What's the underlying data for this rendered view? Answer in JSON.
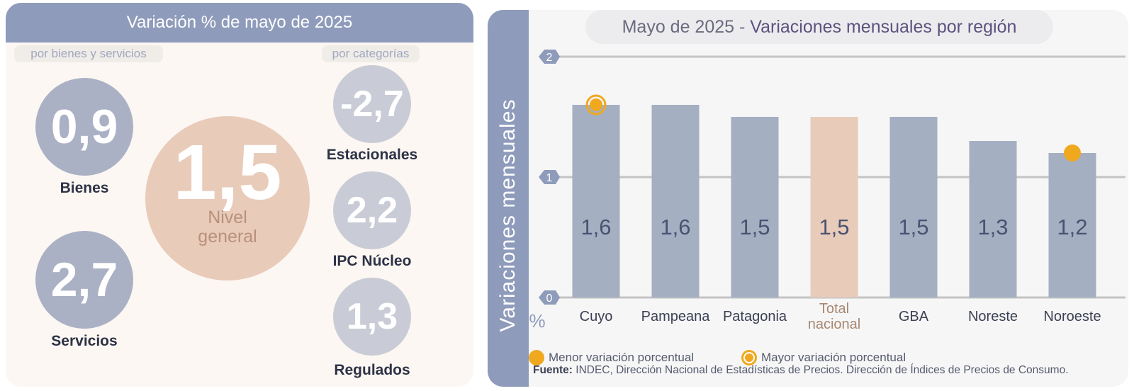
{
  "left": {
    "title": "Variación % de mayo de 2025",
    "pill_left": "por bienes y servicios",
    "pill_right": "por categorías",
    "bienes": {
      "value": "0,9",
      "label": "Bienes"
    },
    "servicios": {
      "value": "2,7",
      "label": "Servicios"
    },
    "nivel_general": {
      "value": "1,5",
      "label_line1": "Nivel",
      "label_line2": "general"
    },
    "estacionales": {
      "value": "-2,7",
      "label": "Estacionales"
    },
    "ipc_nucleo": {
      "value": "2,2",
      "label": "IPC Núcleo"
    },
    "regulados": {
      "value": "1,3",
      "label": "Regulados"
    }
  },
  "right": {
    "title_part1": "Mayo de 2025",
    "title_sep": " - ",
    "title_part2": "Variaciones mensuales por región",
    "y_axis_title": "Variaciones  mensuales",
    "unit": "%",
    "legend_min": "Menor variación porcentual",
    "legend_max": "Mayor variación porcentual",
    "source_label": "Fuente:",
    "source_text": " INDEC, Dirección Nacional de Estadísticas de Precios. Dirección de Índices de Precios de Consumo."
  },
  "chart_data": {
    "type": "bar",
    "title": "Mayo de 2025 - Variaciones mensuales por región",
    "ylabel": "Variaciones  mensuales",
    "yunit": "%",
    "ylim": [
      0,
      2
    ],
    "yticks": [
      "0",
      "1",
      "2"
    ],
    "grid": true,
    "categories": [
      "Cuyo",
      "Pampeana",
      "Patagonia",
      "Total nacional",
      "GBA",
      "Noreste",
      "Noroeste"
    ],
    "values": [
      1.6,
      1.6,
      1.5,
      1.5,
      1.5,
      1.3,
      1.2
    ],
    "value_labels": [
      "1,6",
      "1,6",
      "1,5",
      "1,5",
      "1,5",
      "1,3",
      "1,2"
    ],
    "highlight_index": 3,
    "max_marker_index": 0,
    "min_marker_index": 6,
    "colors": {
      "bar": "#a4afc1",
      "highlight": "#e9cbba",
      "marker": "#f0a91f",
      "label": "#4a5272",
      "highlight_label": "#a88771"
    }
  }
}
